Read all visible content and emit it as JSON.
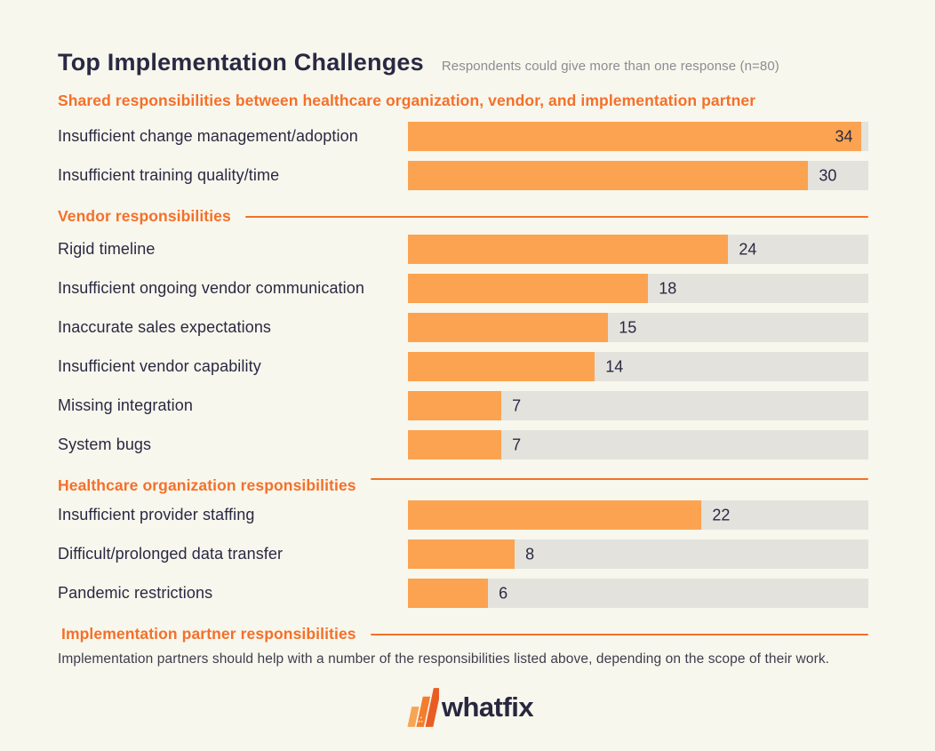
{
  "page": {
    "background": "#F8F7ED"
  },
  "header": {
    "title": "Top Implementation Challenges",
    "subtitle": "Respondents could give more than one response (n=80)"
  },
  "colors": {
    "bar_fill": "#FBA351",
    "bar_track": "#E3E2DD",
    "accent_orange": "#F4702A",
    "text_navy": "#2A2943",
    "subtitle_gray": "#8C8B92",
    "footnote_gray": "#3E3D4D",
    "background_cream": "#F8F7ED"
  },
  "chart_data": {
    "type": "bar",
    "orientation": "horizontal",
    "title": "Top Implementation Challenges",
    "subtitle": "Respondents could give more than one response (n=80)",
    "value_axis_max": 34.5,
    "grid": false,
    "value_labels": "at bar end",
    "groups": [
      {
        "id": "shared",
        "label": "Shared responsibilities between healthcare organization, vendor, and implementation partner",
        "divider": false,
        "categories": [
          "Insufficient change management/adoption",
          "Insufficient training quality/time"
        ],
        "values": [
          34,
          30
        ]
      },
      {
        "id": "vendor",
        "label": "Vendor responsibilities",
        "divider": true,
        "categories": [
          "Rigid timeline",
          "Insufficient ongoing vendor communication",
          "Inaccurate sales expectations",
          "Insufficient vendor capability",
          "Missing integration",
          "System bugs"
        ],
        "values": [
          24,
          18,
          15,
          14,
          7,
          7
        ]
      },
      {
        "id": "healthcare",
        "label": "Healthcare organization responsibilities",
        "divider": true,
        "categories": [
          "Insufficient provider staffing",
          "Difficult/prolonged data transfer",
          "Pandemic restrictions"
        ],
        "values": [
          22,
          8,
          6
        ]
      },
      {
        "id": "partner",
        "label": "Implementation partner responsibilities",
        "divider": true,
        "categories": [],
        "values": [],
        "note": "Implementation partners should help with a number of the responsibilities listed above, depending on the scope of their work."
      }
    ]
  },
  "footer": {
    "logo_text": "whatfix",
    "logo_icon": "whatfix-w-icon"
  }
}
